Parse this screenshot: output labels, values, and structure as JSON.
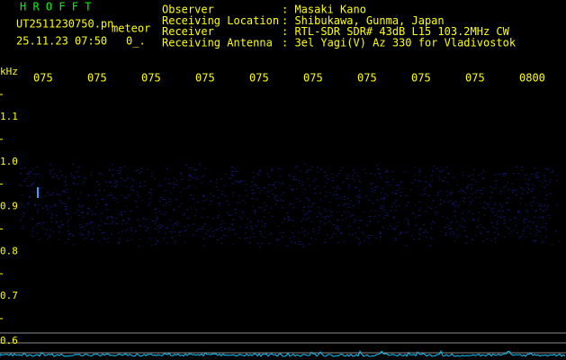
{
  "header": {
    "app": "H R O F F T",
    "file": "UT2511230750.pn",
    "mode": "meteor",
    "datetime": "25.11.23 07:50",
    "count": "0_."
  },
  "info": [
    {
      "label": "Observer",
      "value": ": Masaki Kano"
    },
    {
      "label": "Receiving Location",
      "value": ": Shibukawa, Gunma, Japan"
    },
    {
      "label": "Receiver",
      "value": ": RTL-SDR SDR# 43dB L15 103.2MHz CW"
    },
    {
      "label": "Receiving Antenna",
      "value": ": 3el Yagi(V) Az 330 for Vladivostok"
    }
  ],
  "time_labels": [
    "075",
    "075",
    "075",
    "075",
    "075",
    "075",
    "075",
    "075",
    "075",
    "0800"
  ],
  "freq_unit": "kHz",
  "freq_labels": [
    "1.1",
    "1.0",
    "0.9",
    "0.8",
    "0.7",
    "0.6"
  ]
}
